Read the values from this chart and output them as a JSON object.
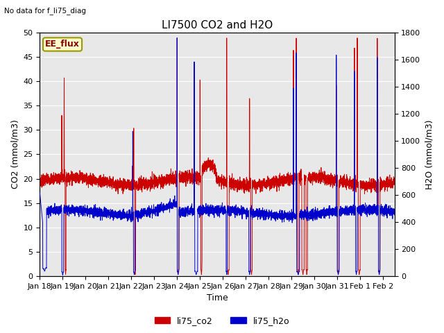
{
  "title": "LI7500 CO2 and H2O",
  "top_left_text": "No data for f_li75_diag",
  "xlabel": "Time",
  "ylabel_left": "CO2 (mmol/m3)",
  "ylabel_right": "H2O (mmol/m3)",
  "ylim_left": [
    0,
    50
  ],
  "ylim_right": [
    0,
    1800
  ],
  "legend_labels": [
    "li75_co2",
    "li75_h2o"
  ],
  "co2_color": "#cc0000",
  "h2o_color": "#0000cc",
  "box_label": "EE_flux",
  "box_facecolor": "#ffffcc",
  "box_edgecolor": "#999900",
  "box_textcolor": "#880000",
  "axes_facecolor": "#e8e8e8",
  "fig_facecolor": "#ffffff",
  "grid_color": "#ffffff",
  "title_fontsize": 11,
  "label_fontsize": 9,
  "tick_fontsize": 8
}
